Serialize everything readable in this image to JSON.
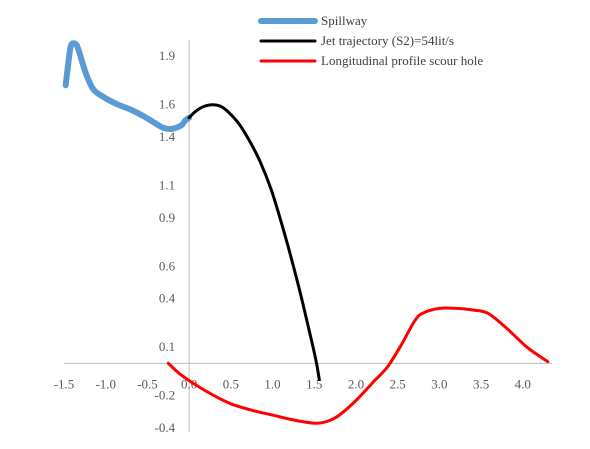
{
  "chart_data": {
    "type": "line",
    "title": "",
    "xlabel": "",
    "ylabel": "",
    "xlim": [
      -1.5,
      4.35
    ],
    "ylim": [
      -0.4,
      2.05
    ],
    "x_ticks": [
      -1.5,
      -1.0,
      -0.5,
      0.0,
      0.5,
      1.0,
      1.5,
      2.0,
      2.5,
      3.0,
      3.5,
      4.0
    ],
    "x_tick_labels": [
      "-1.5",
      "-1.0",
      "-0.5",
      "0.0",
      "0.5",
      "1.0",
      "1.5",
      "2.0",
      "2.5",
      "3.0",
      "3.5",
      "4.0"
    ],
    "y_ticks": [
      -0.4,
      -0.2,
      0.1,
      0.4,
      0.6,
      0.9,
      1.1,
      1.4,
      1.6,
      1.9
    ],
    "y_tick_labels": [
      "-0.4",
      "-0.2",
      "0.1",
      "0.4",
      "0.6",
      "0.9",
      "1.1",
      "1.4",
      "1.6",
      "1.9"
    ],
    "grid": false,
    "legend_position": "top-right",
    "series": [
      {
        "name": "Spillway",
        "color": "#5b9bd5",
        "x": [
          -1.48,
          -1.45,
          -1.42,
          -1.39,
          -1.35,
          -1.32,
          -1.28,
          -1.22,
          -1.14,
          -1.0,
          -0.85,
          -0.7,
          -0.55,
          -0.42,
          -0.32,
          -0.22,
          -0.1,
          -0.05,
          0.0
        ],
        "y": [
          1.72,
          1.85,
          1.96,
          1.98,
          1.97,
          1.93,
          1.86,
          1.77,
          1.69,
          1.64,
          1.6,
          1.57,
          1.53,
          1.49,
          1.46,
          1.45,
          1.47,
          1.5,
          1.52
        ]
      },
      {
        "name": "Jet trajectory  (S2)=54lit/s",
        "color": "#000000",
        "x": [
          0.0,
          0.08,
          0.18,
          0.28,
          0.38,
          0.48,
          0.6,
          0.72,
          0.85,
          0.98,
          1.1,
          1.22,
          1.34,
          1.44,
          1.52,
          1.56
        ],
        "y": [
          1.52,
          1.56,
          1.59,
          1.6,
          1.59,
          1.55,
          1.48,
          1.38,
          1.25,
          1.08,
          0.88,
          0.66,
          0.42,
          0.2,
          0.02,
          -0.1
        ]
      },
      {
        "name": "Longitudinal profile scour hole",
        "color": "#ff0000",
        "x": [
          -0.25,
          -0.1,
          0.1,
          0.3,
          0.5,
          0.75,
          1.0,
          1.25,
          1.5,
          1.65,
          1.8,
          2.0,
          2.2,
          2.38,
          2.55,
          2.7,
          2.8,
          3.0,
          3.2,
          3.4,
          3.58,
          3.8,
          4.05,
          4.3
        ],
        "y": [
          0.0,
          -0.07,
          -0.14,
          -0.2,
          -0.25,
          -0.29,
          -0.32,
          -0.35,
          -0.37,
          -0.36,
          -0.32,
          -0.23,
          -0.12,
          -0.02,
          0.12,
          0.26,
          0.31,
          0.34,
          0.34,
          0.33,
          0.31,
          0.22,
          0.1,
          0.01
        ]
      }
    ]
  }
}
